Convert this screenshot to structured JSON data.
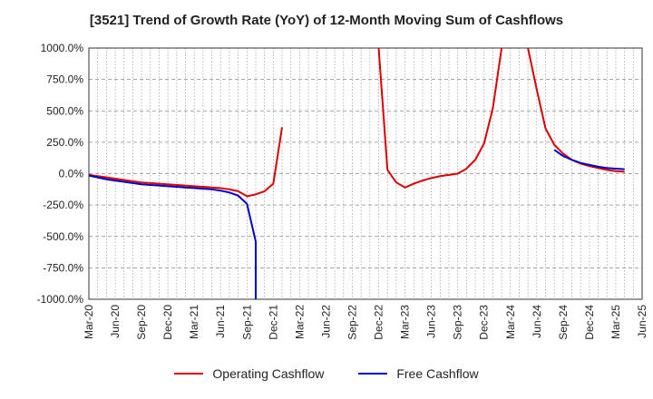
{
  "chart_data": {
    "type": "line",
    "title": "[3521]  Trend of Growth Rate (YoY) of 12-Month Moving Sum of Cashflows",
    "xlabel": "",
    "ylabel": "",
    "ylim": [
      -1000,
      1000
    ],
    "y_ticks": [
      "1000.0%",
      "750.0%",
      "500.0%",
      "250.0%",
      "0.0%",
      "-250.0%",
      "-500.0%",
      "-750.0%",
      "-1000.0%"
    ],
    "x_ticks": [
      "Mar-20",
      "Jun-20",
      "Sep-20",
      "Dec-20",
      "Mar-21",
      "Jun-21",
      "Sep-21",
      "Dec-21",
      "Mar-22",
      "Jun-22",
      "Sep-22",
      "Dec-22",
      "Mar-23",
      "Jun-23",
      "Sep-23",
      "Dec-23",
      "Mar-24",
      "Jun-24",
      "Sep-24",
      "Dec-24",
      "Mar-25",
      "Jun-25"
    ],
    "grid": true,
    "legend_position": "bottom",
    "series": [
      {
        "name": "Operating Cashflow",
        "color": "#dd0000",
        "points": [
          [
            "Mar-20",
            -10
          ],
          [
            "Apr-20",
            -20
          ],
          [
            "May-20",
            -30
          ],
          [
            "Jun-20",
            -40
          ],
          [
            "Jul-20",
            -50
          ],
          [
            "Aug-20",
            -60
          ],
          [
            "Sep-20",
            -70
          ],
          [
            "Oct-20",
            -75
          ],
          [
            "Nov-20",
            -80
          ],
          [
            "Dec-20",
            -85
          ],
          [
            "Jan-21",
            -90
          ],
          [
            "Feb-21",
            -95
          ],
          [
            "Mar-21",
            -100
          ],
          [
            "Apr-21",
            -105
          ],
          [
            "May-21",
            -110
          ],
          [
            "Jun-21",
            -115
          ],
          [
            "Jul-21",
            -125
          ],
          [
            "Aug-21",
            -140
          ],
          [
            "Sep-21",
            -180
          ],
          [
            "Oct-21",
            -165
          ],
          [
            "Nov-21",
            -140
          ],
          [
            "Dec-21",
            -80
          ],
          [
            "Jan-22",
            370
          ],
          [
            "Dec-22",
            1000
          ],
          [
            "Jan-23",
            30
          ],
          [
            "Feb-23",
            -70
          ],
          [
            "Mar-23",
            -110
          ],
          [
            "Apr-23",
            -80
          ],
          [
            "May-23",
            -55
          ],
          [
            "Jun-23",
            -35
          ],
          [
            "Jul-23",
            -20
          ],
          [
            "Aug-23",
            -10
          ],
          [
            "Sep-23",
            0
          ],
          [
            "Oct-23",
            40
          ],
          [
            "Nov-23",
            110
          ],
          [
            "Dec-23",
            240
          ],
          [
            "Jan-24",
            520
          ],
          [
            "Feb-24",
            1000
          ],
          [
            "May-24",
            1000
          ],
          [
            "Jun-24",
            670
          ],
          [
            "Jul-24",
            360
          ],
          [
            "Aug-24",
            230
          ],
          [
            "Sep-24",
            160
          ],
          [
            "Oct-24",
            110
          ],
          [
            "Nov-24",
            80
          ],
          [
            "Dec-24",
            60
          ],
          [
            "Jan-25",
            45
          ],
          [
            "Feb-25",
            30
          ],
          [
            "Mar-25",
            20
          ],
          [
            "Apr-25",
            15
          ]
        ]
      },
      {
        "name": "Free Cashflow",
        "color": "#0000cc",
        "points": [
          [
            "Mar-20",
            -15
          ],
          [
            "Apr-20",
            -30
          ],
          [
            "May-20",
            -45
          ],
          [
            "Jun-20",
            -55
          ],
          [
            "Jul-20",
            -65
          ],
          [
            "Aug-20",
            -75
          ],
          [
            "Sep-20",
            -85
          ],
          [
            "Oct-20",
            -90
          ],
          [
            "Nov-20",
            -95
          ],
          [
            "Dec-20",
            -100
          ],
          [
            "Jan-21",
            -105
          ],
          [
            "Feb-21",
            -110
          ],
          [
            "Mar-21",
            -115
          ],
          [
            "Apr-21",
            -120
          ],
          [
            "May-21",
            -125
          ],
          [
            "Jun-21",
            -135
          ],
          [
            "Jul-21",
            -150
          ],
          [
            "Aug-21",
            -175
          ],
          [
            "Sep-21",
            -240
          ],
          [
            "Oct-21",
            -540
          ],
          [
            "Oct-21",
            -1000
          ],
          [
            "Aug-24",
            190
          ],
          [
            "Sep-24",
            140
          ],
          [
            "Oct-24",
            110
          ],
          [
            "Nov-24",
            85
          ],
          [
            "Dec-24",
            70
          ],
          [
            "Jan-25",
            55
          ],
          [
            "Feb-25",
            45
          ],
          [
            "Mar-25",
            40
          ],
          [
            "Apr-25",
            35
          ]
        ]
      }
    ]
  }
}
